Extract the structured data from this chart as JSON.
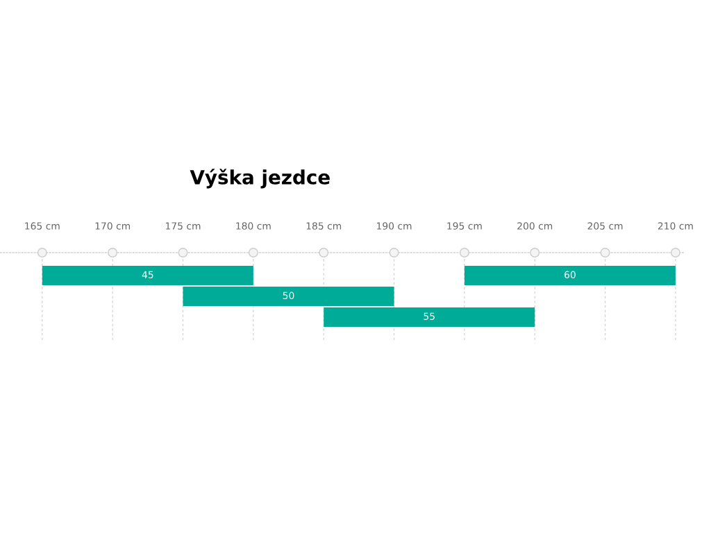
{
  "chart_data": {
    "type": "bar",
    "orientation": "horizontal",
    "title": "Výška jezdce",
    "categories": [
      null,
      null,
      null
    ],
    "series": [
      {
        "name": "45",
        "color": "#00ab97",
        "base": [
          165,
          null,
          null
        ],
        "values": [
          15,
          null,
          null
        ]
      },
      {
        "name": "50",
        "color": "#00ab97",
        "base": [
          null,
          175,
          null
        ],
        "values": [
          null,
          15,
          null
        ]
      },
      {
        "name": "55",
        "color": "#00ab97",
        "base": [
          null,
          null,
          185
        ],
        "values": [
          null,
          null,
          15
        ]
      },
      {
        "name": "60",
        "color": "#00ab97",
        "base": [
          195,
          null,
          null
        ],
        "values": [
          15,
          null,
          null
        ]
      }
    ],
    "xlim": [
      162,
      210.6
    ],
    "xticks": [
      {
        "value": 165,
        "label": "165 cm"
      },
      {
        "value": 170,
        "label": "170 cm"
      },
      {
        "value": 175,
        "label": "175 cm"
      },
      {
        "value": 180,
        "label": "180 cm"
      },
      {
        "value": 185,
        "label": "185 cm"
      },
      {
        "value": 190,
        "label": "190 cm"
      },
      {
        "value": 195,
        "label": "195 cm"
      },
      {
        "value": 200,
        "label": "200 cm"
      },
      {
        "value": 205,
        "label": "205 cm"
      },
      {
        "value": 210,
        "label": "210 cm"
      }
    ],
    "grid": "x",
    "legend": false
  }
}
